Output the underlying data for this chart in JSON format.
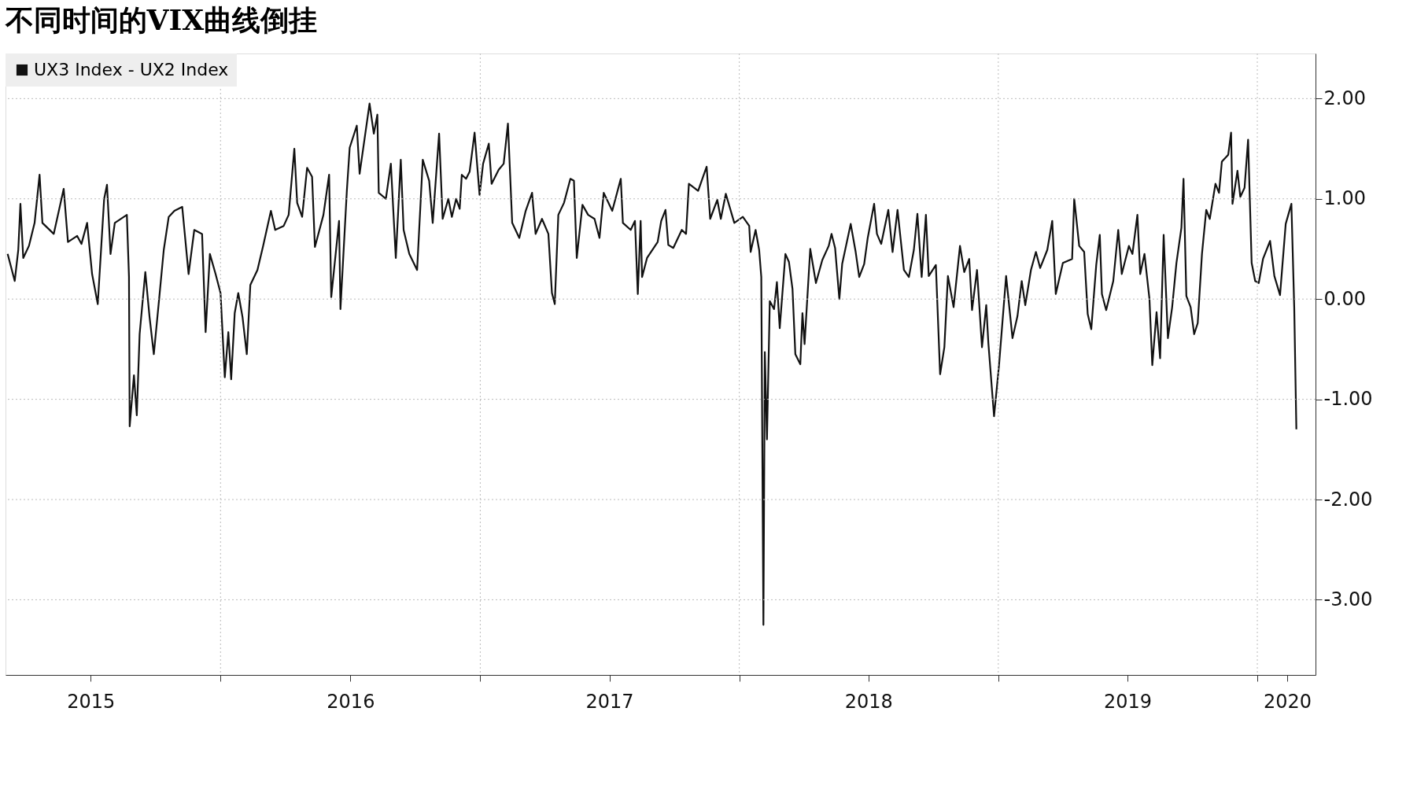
{
  "chart_data": {
    "type": "line",
    "title": "不同时间的VIX曲线倒挂",
    "x": [
      "2015-03-07",
      "2015-03-17",
      "2015-03-22",
      "2015-03-25",
      "2015-03-29",
      "2015-04-06",
      "2015-04-14",
      "2015-04-21",
      "2015-04-25",
      "2015-05-11",
      "2015-05-25",
      "2015-05-31",
      "2015-06-13",
      "2015-06-19",
      "2015-06-27",
      "2015-07-04",
      "2015-07-12",
      "2015-07-21",
      "2015-07-25",
      "2015-07-30",
      "2015-08-05",
      "2015-08-22",
      "2015-08-25",
      "2015-08-26",
      "2015-09-01",
      "2015-09-05",
      "2015-09-09",
      "2015-09-17",
      "2015-09-23",
      "2015-09-29",
      "2015-10-07",
      "2015-10-13",
      "2015-10-20",
      "2015-10-28",
      "2015-11-08",
      "2015-11-17",
      "2015-11-25",
      "2015-12-06",
      "2015-12-11",
      "2015-12-17",
      "2015-12-25",
      "2016-01-01",
      "2016-01-07",
      "2016-01-12",
      "2016-01-16",
      "2016-01-21",
      "2016-01-26",
      "2016-02-01",
      "2016-02-07",
      "2016-02-12",
      "2016-02-22",
      "2016-03-01",
      "2016-03-12",
      "2016-03-18",
      "2016-03-30",
      "2016-04-06",
      "2016-04-14",
      "2016-04-18",
      "2016-04-25",
      "2016-05-02",
      "2016-05-09",
      "2016-05-13",
      "2016-05-25",
      "2016-06-02",
      "2016-06-05",
      "2016-06-16",
      "2016-06-18",
      "2016-06-27",
      "2016-07-01",
      "2016-07-11",
      "2016-07-15",
      "2016-07-29",
      "2016-08-04",
      "2016-08-09",
      "2016-08-11",
      "2016-08-21",
      "2016-08-28",
      "2016-09-04",
      "2016-09-11",
      "2016-09-15",
      "2016-09-23",
      "2016-10-04",
      "2016-10-12",
      "2016-10-21",
      "2016-10-26",
      "2016-11-04",
      "2016-11-09",
      "2016-11-17",
      "2016-11-22",
      "2016-11-28",
      "2016-12-03",
      "2016-12-06",
      "2016-12-12",
      "2016-12-17",
      "2016-12-24",
      "2016-12-31",
      "2017-01-05",
      "2017-01-13",
      "2017-01-17",
      "2017-01-27",
      "2017-02-03",
      "2017-02-09",
      "2017-02-15",
      "2017-02-25",
      "2017-03-06",
      "2017-03-15",
      "2017-03-20",
      "2017-03-29",
      "2017-04-07",
      "2017-04-12",
      "2017-04-16",
      "2017-04-21",
      "2017-04-29",
      "2017-05-08",
      "2017-05-13",
      "2017-05-17",
      "2017-05-25",
      "2017-06-02",
      "2017-06-11",
      "2017-06-18",
      "2017-06-24",
      "2017-07-06",
      "2017-07-18",
      "2017-07-21",
      "2017-08-01",
      "2017-08-07",
      "2017-08-11",
      "2017-08-15",
      "2017-08-17",
      "2017-08-24",
      "2017-09-08",
      "2017-09-13",
      "2017-09-19",
      "2017-09-23",
      "2017-09-30",
      "2017-10-12",
      "2017-10-18",
      "2017-10-22",
      "2017-11-04",
      "2017-11-11",
      "2017-11-16",
      "2017-11-21",
      "2017-12-01",
      "2017-12-06",
      "2017-12-13",
      "2017-12-25",
      "2018-01-06",
      "2018-01-15",
      "2018-01-17",
      "2018-01-24",
      "2018-01-29",
      "2018-02-01",
      "2018-02-04",
      "2018-02-06",
      "2018-02-09",
      "2018-02-13",
      "2018-02-19",
      "2018-02-23",
      "2018-02-27",
      "2018-03-07",
      "2018-03-12",
      "2018-03-17",
      "2018-03-21",
      "2018-03-28",
      "2018-03-31",
      "2018-04-03",
      "2018-04-11",
      "2018-04-19",
      "2018-04-28",
      "2018-05-07",
      "2018-05-11",
      "2018-05-16",
      "2018-05-22",
      "2018-05-26",
      "2018-06-07",
      "2018-06-14",
      "2018-06-19",
      "2018-06-26",
      "2018-07-01",
      "2018-07-10",
      "2018-07-14",
      "2018-07-20",
      "2018-07-30",
      "2018-08-05",
      "2018-08-12",
      "2018-08-21",
      "2018-08-28",
      "2018-09-04",
      "2018-09-09",
      "2018-09-15",
      "2018-09-21",
      "2018-09-25",
      "2018-10-05",
      "2018-10-11",
      "2018-10-17",
      "2018-10-22",
      "2018-10-30",
      "2018-11-08",
      "2018-11-14",
      "2018-11-21",
      "2018-11-25",
      "2018-12-02",
      "2018-12-09",
      "2018-12-15",
      "2018-12-18",
      "2018-12-26",
      "2019-01-02",
      "2019-01-12",
      "2019-01-21",
      "2019-01-28",
      "2019-02-03",
      "2019-02-08",
      "2019-02-16",
      "2019-02-23",
      "2019-03-01",
      "2019-03-11",
      "2019-03-18",
      "2019-03-23",
      "2019-04-02",
      "2019-04-15",
      "2019-04-18",
      "2019-04-25",
      "2019-05-02",
      "2019-05-07",
      "2019-05-12",
      "2019-05-19",
      "2019-05-24",
      "2019-05-27",
      "2019-06-02",
      "2019-06-12",
      "2019-06-19",
      "2019-06-24",
      "2019-07-04",
      "2019-07-09",
      "2019-07-16",
      "2019-07-20",
      "2019-07-26",
      "2019-08-02",
      "2019-08-06",
      "2019-08-12",
      "2019-08-17",
      "2019-08-22",
      "2019-08-28",
      "2019-09-03",
      "2019-09-09",
      "2019-09-16",
      "2019-09-19",
      "2019-09-23",
      "2019-09-29",
      "2019-10-04",
      "2019-10-09",
      "2019-10-15",
      "2019-10-21",
      "2019-10-26",
      "2019-11-03",
      "2019-11-08",
      "2019-11-12",
      "2019-11-21",
      "2019-11-25",
      "2019-11-27",
      "2019-12-04",
      "2019-12-08",
      "2019-12-14",
      "2019-12-19",
      "2019-12-24",
      "2019-12-29",
      "2020-01-03",
      "2020-01-09",
      "2020-01-19",
      "2020-01-25",
      "2020-02-02",
      "2020-02-10",
      "2020-02-18",
      "2020-02-22",
      "2020-02-25"
    ],
    "series": [
      {
        "name": "UX3 Index - UX2 Index",
        "color": "#111111",
        "values": [
          0.45,
          0.18,
          0.49,
          0.95,
          0.41,
          0.53,
          0.76,
          1.24,
          0.76,
          0.65,
          1.1,
          0.57,
          0.63,
          0.55,
          0.76,
          0.25,
          -0.05,
          1.0,
          1.14,
          0.45,
          0.76,
          0.84,
          0.22,
          -1.27,
          -0.76,
          -1.16,
          -0.35,
          0.27,
          -0.18,
          -0.55,
          0.04,
          0.49,
          0.82,
          0.88,
          0.92,
          0.25,
          0.69,
          0.65,
          -0.33,
          0.45,
          0.25,
          0.06,
          -0.78,
          -0.33,
          -0.8,
          -0.14,
          0.06,
          -0.18,
          -0.55,
          0.14,
          0.29,
          0.53,
          0.88,
          0.69,
          0.73,
          0.84,
          1.5,
          0.96,
          0.82,
          1.31,
          1.22,
          0.52,
          0.84,
          1.24,
          0.02,
          0.78,
          -0.1,
          1.08,
          1.51,
          1.73,
          1.25,
          1.95,
          1.65,
          1.84,
          1.06,
          1.0,
          1.35,
          0.41,
          1.39,
          0.69,
          0.45,
          0.29,
          1.39,
          1.18,
          0.76,
          1.65,
          0.8,
          1.0,
          0.82,
          1.0,
          0.9,
          1.24,
          1.2,
          1.27,
          1.66,
          1.04,
          1.35,
          1.55,
          1.15,
          1.29,
          1.35,
          1.75,
          0.76,
          0.61,
          0.88,
          1.06,
          0.65,
          0.8,
          0.65,
          0.06,
          -0.05,
          0.84,
          0.96,
          1.2,
          1.18,
          0.41,
          0.94,
          0.84,
          0.8,
          0.61,
          1.06,
          0.88,
          1.2,
          0.76,
          0.69,
          0.78,
          0.05,
          0.78,
          0.22,
          0.41,
          0.57,
          0.78,
          0.89,
          0.54,
          0.51,
          0.69,
          0.65,
          1.15,
          1.08,
          1.22,
          1.32,
          0.8,
          0.99,
          0.8,
          1.05,
          0.76,
          0.82,
          0.73,
          0.47,
          0.69,
          0.49,
          0.22,
          -3.25,
          -0.53,
          -1.4,
          -0.02,
          -0.1,
          0.17,
          -0.29,
          0.45,
          0.37,
          0.1,
          -0.55,
          -0.65,
          -0.14,
          -0.45,
          0.5,
          0.16,
          0.39,
          0.53,
          0.65,
          0.51,
          0.0,
          0.35,
          0.75,
          0.47,
          0.22,
          0.35,
          0.61,
          0.95,
          0.65,
          0.55,
          0.89,
          0.47,
          0.89,
          0.29,
          0.22,
          0.49,
          0.85,
          0.22,
          0.84,
          0.23,
          0.34,
          -0.75,
          -0.48,
          0.23,
          -0.08,
          0.53,
          0.27,
          0.4,
          -0.11,
          0.29,
          -0.48,
          -0.06,
          -0.44,
          -1.17,
          -0.66,
          0.23,
          -0.39,
          -0.17,
          0.18,
          -0.06,
          0.29,
          0.47,
          0.31,
          0.49,
          0.78,
          0.05,
          0.36,
          0.4,
          1.0,
          0.53,
          0.47,
          -0.15,
          -0.3,
          0.34,
          0.64,
          0.05,
          -0.11,
          0.18,
          0.69,
          0.25,
          0.53,
          0.45,
          0.84,
          0.25,
          0.45,
          0.0,
          -0.66,
          -0.13,
          -0.59,
          0.64,
          -0.39,
          -0.08,
          0.36,
          0.71,
          1.2,
          0.03,
          -0.08,
          -0.35,
          -0.24,
          0.45,
          0.89,
          0.8,
          1.15,
          1.06,
          1.37,
          1.44,
          1.66,
          0.95,
          1.28,
          1.02,
          1.11,
          1.59,
          0.36,
          0.18,
          0.16,
          0.4,
          0.58,
          0.23,
          0.04,
          0.75,
          0.95,
          -0.08,
          -1.3
        ]
      }
    ],
    "xlim": [
      "2015-03-04",
      "2020-03-23"
    ],
    "xticks": [
      {
        "value": "2015-07-02",
        "label": "2015"
      },
      {
        "value": "2016-01-01",
        "label": null
      },
      {
        "value": "2016-07-02",
        "label": "2016"
      },
      {
        "value": "2017-01-01",
        "label": null
      },
      {
        "value": "2017-07-02",
        "label": "2017"
      },
      {
        "value": "2018-01-01",
        "label": null
      },
      {
        "value": "2018-07-02",
        "label": "2018"
      },
      {
        "value": "2019-01-01",
        "label": null
      },
      {
        "value": "2019-07-02",
        "label": "2019"
      },
      {
        "value": "2020-01-01",
        "label": null
      },
      {
        "value": "2020-02-12",
        "label": "2020"
      }
    ],
    "ylim": [
      -3.75,
      2.45
    ],
    "yticks": [
      {
        "value": -3,
        "label": "-3.00"
      },
      {
        "value": -2,
        "label": "-2.00"
      },
      {
        "value": -1,
        "label": "-1.00"
      },
      {
        "value": 0,
        "label": "0.00"
      },
      {
        "value": 1,
        "label": "1.00"
      },
      {
        "value": 2,
        "label": "2.00"
      }
    ],
    "grid": true,
    "legend": "top left",
    "line_style": "solid"
  }
}
